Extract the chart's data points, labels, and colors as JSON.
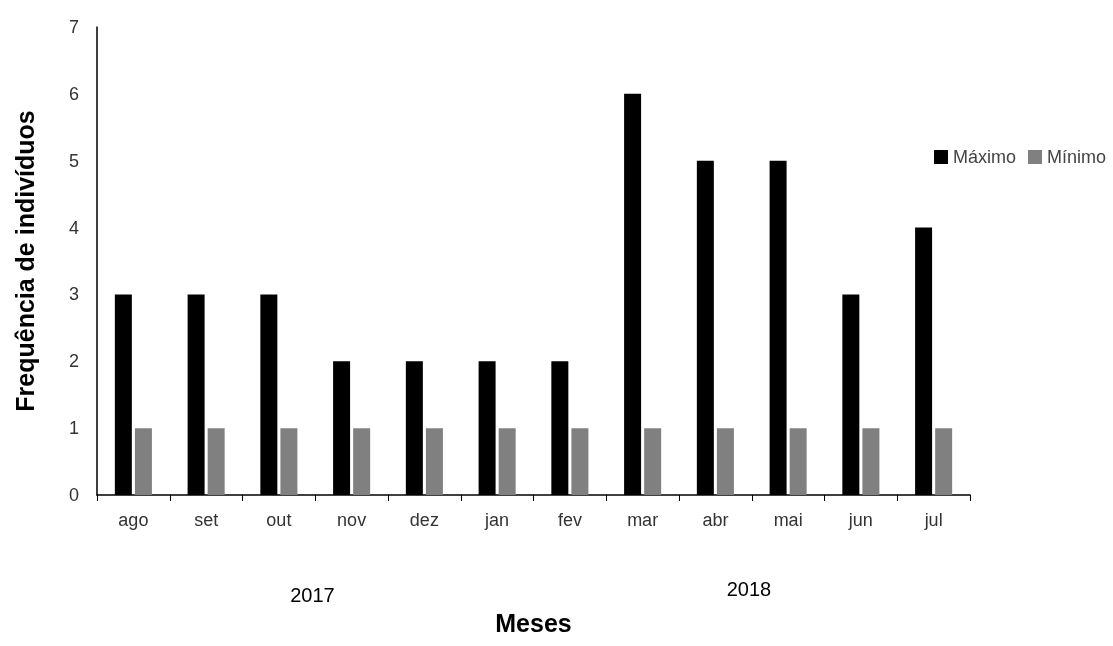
{
  "chart_data": {
    "type": "bar",
    "xlabel": "Meses",
    "ylabel": "Frequência de indivíduos",
    "categories": [
      "ago",
      "set",
      "out",
      "nov",
      "dez",
      "jan",
      "fev",
      "mar",
      "abr",
      "mai",
      "jun",
      "jul"
    ],
    "series": [
      {
        "name": "Máximo",
        "color": "#000000",
        "values": [
          3,
          3,
          3,
          2,
          2,
          2,
          2,
          6,
          5,
          5,
          3,
          4
        ]
      },
      {
        "name": "Mínimo",
        "color": "#808080",
        "values": [
          1,
          1,
          1,
          1,
          1,
          1,
          1,
          1,
          1,
          1,
          1,
          1
        ]
      }
    ],
    "ylim": [
      0,
      7
    ],
    "yticks": [
      0,
      1,
      2,
      3,
      4,
      5,
      6,
      7
    ],
    "grid": false,
    "legend": "top right",
    "annotations": [
      "2017",
      "2018"
    ]
  }
}
